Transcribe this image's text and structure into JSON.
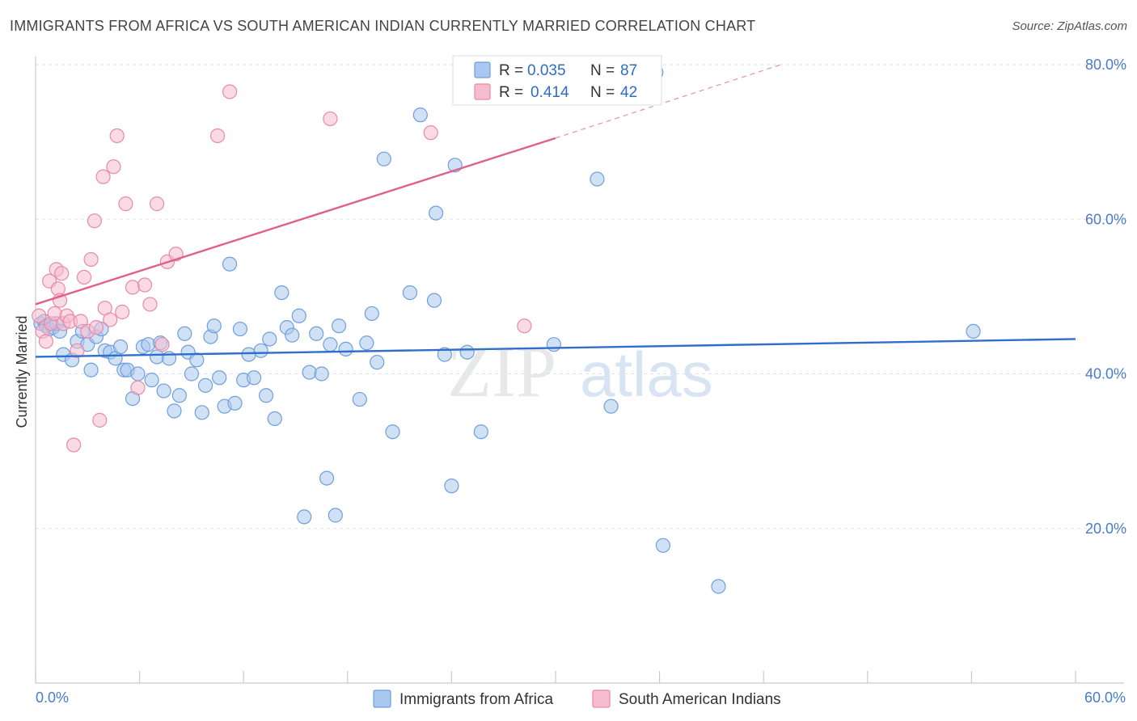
{
  "title": "IMMIGRANTS FROM AFRICA VS SOUTH AMERICAN INDIAN CURRENTLY MARRIED CORRELATION CHART",
  "source": "Source: ZipAtlas.com",
  "watermark": {
    "zip": "ZIP",
    "atlas": "atlas"
  },
  "colors": {
    "blue_fill": "#a9c8ef",
    "blue_stroke": "#6f9fdc",
    "blue_line": "#2f6fc9",
    "pink_fill": "#f6bccd",
    "pink_stroke": "#e88aa8",
    "pink_line": "#e0608a",
    "grid": "#dde3ea",
    "axis_text": "#4a7bc8"
  },
  "legend": {
    "row1": {
      "r_label": "R =",
      "r_value": "0.035",
      "n_label": "N =",
      "n_value": "87"
    },
    "row2": {
      "r_label": "R =",
      "r_value": "0.414",
      "n_label": "N =",
      "n_value": "42"
    }
  },
  "chart_data": {
    "type": "scatter",
    "title": "IMMIGRANTS FROM AFRICA VS SOUTH AMERICAN INDIAN CURRENTLY MARRIED CORRELATION CHART",
    "xlabel": "",
    "ylabel": "Currently Married",
    "xlim": [
      0,
      60
    ],
    "ylim": [
      0,
      82
    ],
    "x_tick_labels": [
      "0.0%",
      "60.0%"
    ],
    "y_ticks": [
      20,
      40,
      60,
      80
    ],
    "y_tick_labels": [
      "20.0%",
      "40.0%",
      "60.0%",
      "80.0%"
    ],
    "grid": true,
    "legend_position": "top-center",
    "series": [
      {
        "name": "Immigrants from Africa",
        "color": "#a9c8ef",
        "R": 0.035,
        "N": 87,
        "trend": {
          "x0": 0,
          "y0": 42.2,
          "x1": 60,
          "y1": 44.5
        },
        "points": [
          [
            0.3,
            46.5
          ],
          [
            0.5,
            46.8
          ],
          [
            0.6,
            46.2
          ],
          [
            0.8,
            45.8
          ],
          [
            1.0,
            46.0
          ],
          [
            1.2,
            46.5
          ],
          [
            1.4,
            45.5
          ],
          [
            1.6,
            42.5
          ],
          [
            2.1,
            41.8
          ],
          [
            2.4,
            44.2
          ],
          [
            2.7,
            45.5
          ],
          [
            3.0,
            43.8
          ],
          [
            3.2,
            40.5
          ],
          [
            3.5,
            44.8
          ],
          [
            3.8,
            45.8
          ],
          [
            4.0,
            43.0
          ],
          [
            4.3,
            42.8
          ],
          [
            4.6,
            42.0
          ],
          [
            4.9,
            43.5
          ],
          [
            5.1,
            40.5
          ],
          [
            5.3,
            40.5
          ],
          [
            5.6,
            36.8
          ],
          [
            5.9,
            40.0
          ],
          [
            6.2,
            43.5
          ],
          [
            6.5,
            43.8
          ],
          [
            6.7,
            39.2
          ],
          [
            7.0,
            42.2
          ],
          [
            7.2,
            44.0
          ],
          [
            7.4,
            37.8
          ],
          [
            7.7,
            42.0
          ],
          [
            8.0,
            35.2
          ],
          [
            8.3,
            37.2
          ],
          [
            8.6,
            45.2
          ],
          [
            8.8,
            42.8
          ],
          [
            9.0,
            40.0
          ],
          [
            9.3,
            41.8
          ],
          [
            9.6,
            35.0
          ],
          [
            9.8,
            38.5
          ],
          [
            10.1,
            44.8
          ],
          [
            10.3,
            46.2
          ],
          [
            10.6,
            39.5
          ],
          [
            10.9,
            35.8
          ],
          [
            11.2,
            54.2
          ],
          [
            11.5,
            36.2
          ],
          [
            11.8,
            45.8
          ],
          [
            12.0,
            39.2
          ],
          [
            12.3,
            42.5
          ],
          [
            12.6,
            39.5
          ],
          [
            13.0,
            43.0
          ],
          [
            13.3,
            37.2
          ],
          [
            13.5,
            44.5
          ],
          [
            13.8,
            34.2
          ],
          [
            14.2,
            50.5
          ],
          [
            14.5,
            46.0
          ],
          [
            14.8,
            45.0
          ],
          [
            15.2,
            47.5
          ],
          [
            15.5,
            21.5
          ],
          [
            15.8,
            40.2
          ],
          [
            16.2,
            45.2
          ],
          [
            16.5,
            40.0
          ],
          [
            16.8,
            26.5
          ],
          [
            17.0,
            43.8
          ],
          [
            17.3,
            21.7
          ],
          [
            17.5,
            46.2
          ],
          [
            17.9,
            43.2
          ],
          [
            18.7,
            36.7
          ],
          [
            19.1,
            44.0
          ],
          [
            19.4,
            47.8
          ],
          [
            19.7,
            41.5
          ],
          [
            20.1,
            67.8
          ],
          [
            20.6,
            32.5
          ],
          [
            21.6,
            50.5
          ],
          [
            22.2,
            73.5
          ],
          [
            23.0,
            49.5
          ],
          [
            23.1,
            60.8
          ],
          [
            23.6,
            42.5
          ],
          [
            24.0,
            25.5
          ],
          [
            24.2,
            67.0
          ],
          [
            24.9,
            42.8
          ],
          [
            25.7,
            32.5
          ],
          [
            29.9,
            43.8
          ],
          [
            32.4,
            65.2
          ],
          [
            33.2,
            35.8
          ],
          [
            35.8,
            79.0
          ],
          [
            36.2,
            17.8
          ],
          [
            39.4,
            12.5
          ],
          [
            54.1,
            45.5
          ]
        ]
      },
      {
        "name": "South American Indians",
        "color": "#f6bccd",
        "R": 0.414,
        "N": 42,
        "trend": {
          "x0": 0,
          "y0": 49.0,
          "x1": 30,
          "y1": 70.5,
          "dash_to_x": 43,
          "dash_to_y": 80.0
        },
        "points": [
          [
            0.2,
            47.5
          ],
          [
            0.4,
            45.5
          ],
          [
            0.6,
            44.2
          ],
          [
            0.8,
            52.0
          ],
          [
            0.9,
            46.5
          ],
          [
            1.1,
            47.8
          ],
          [
            1.2,
            53.5
          ],
          [
            1.3,
            51.0
          ],
          [
            1.4,
            49.5
          ],
          [
            1.5,
            53.0
          ],
          [
            1.6,
            46.5
          ],
          [
            1.8,
            47.5
          ],
          [
            2.0,
            46.8
          ],
          [
            2.2,
            30.8
          ],
          [
            2.4,
            43.0
          ],
          [
            2.6,
            46.8
          ],
          [
            2.8,
            52.5
          ],
          [
            3.0,
            45.5
          ],
          [
            3.2,
            54.8
          ],
          [
            3.4,
            59.8
          ],
          [
            3.5,
            46.0
          ],
          [
            3.7,
            34.0
          ],
          [
            3.9,
            65.5
          ],
          [
            4.0,
            48.5
          ],
          [
            4.3,
            47.0
          ],
          [
            4.5,
            66.8
          ],
          [
            4.7,
            70.8
          ],
          [
            5.0,
            48.0
          ],
          [
            5.2,
            62.0
          ],
          [
            5.6,
            51.2
          ],
          [
            5.9,
            38.2
          ],
          [
            6.3,
            51.5
          ],
          [
            6.6,
            49.0
          ],
          [
            7.0,
            62.0
          ],
          [
            7.3,
            43.8
          ],
          [
            7.6,
            54.5
          ],
          [
            8.1,
            55.5
          ],
          [
            10.5,
            70.8
          ],
          [
            11.2,
            76.5
          ],
          [
            17.0,
            73.0
          ],
          [
            22.8,
            71.2
          ],
          [
            28.2,
            46.2
          ]
        ]
      }
    ]
  },
  "bottom_legend": {
    "blue_label": "Immigrants from Africa",
    "pink_label": "South American Indians"
  }
}
